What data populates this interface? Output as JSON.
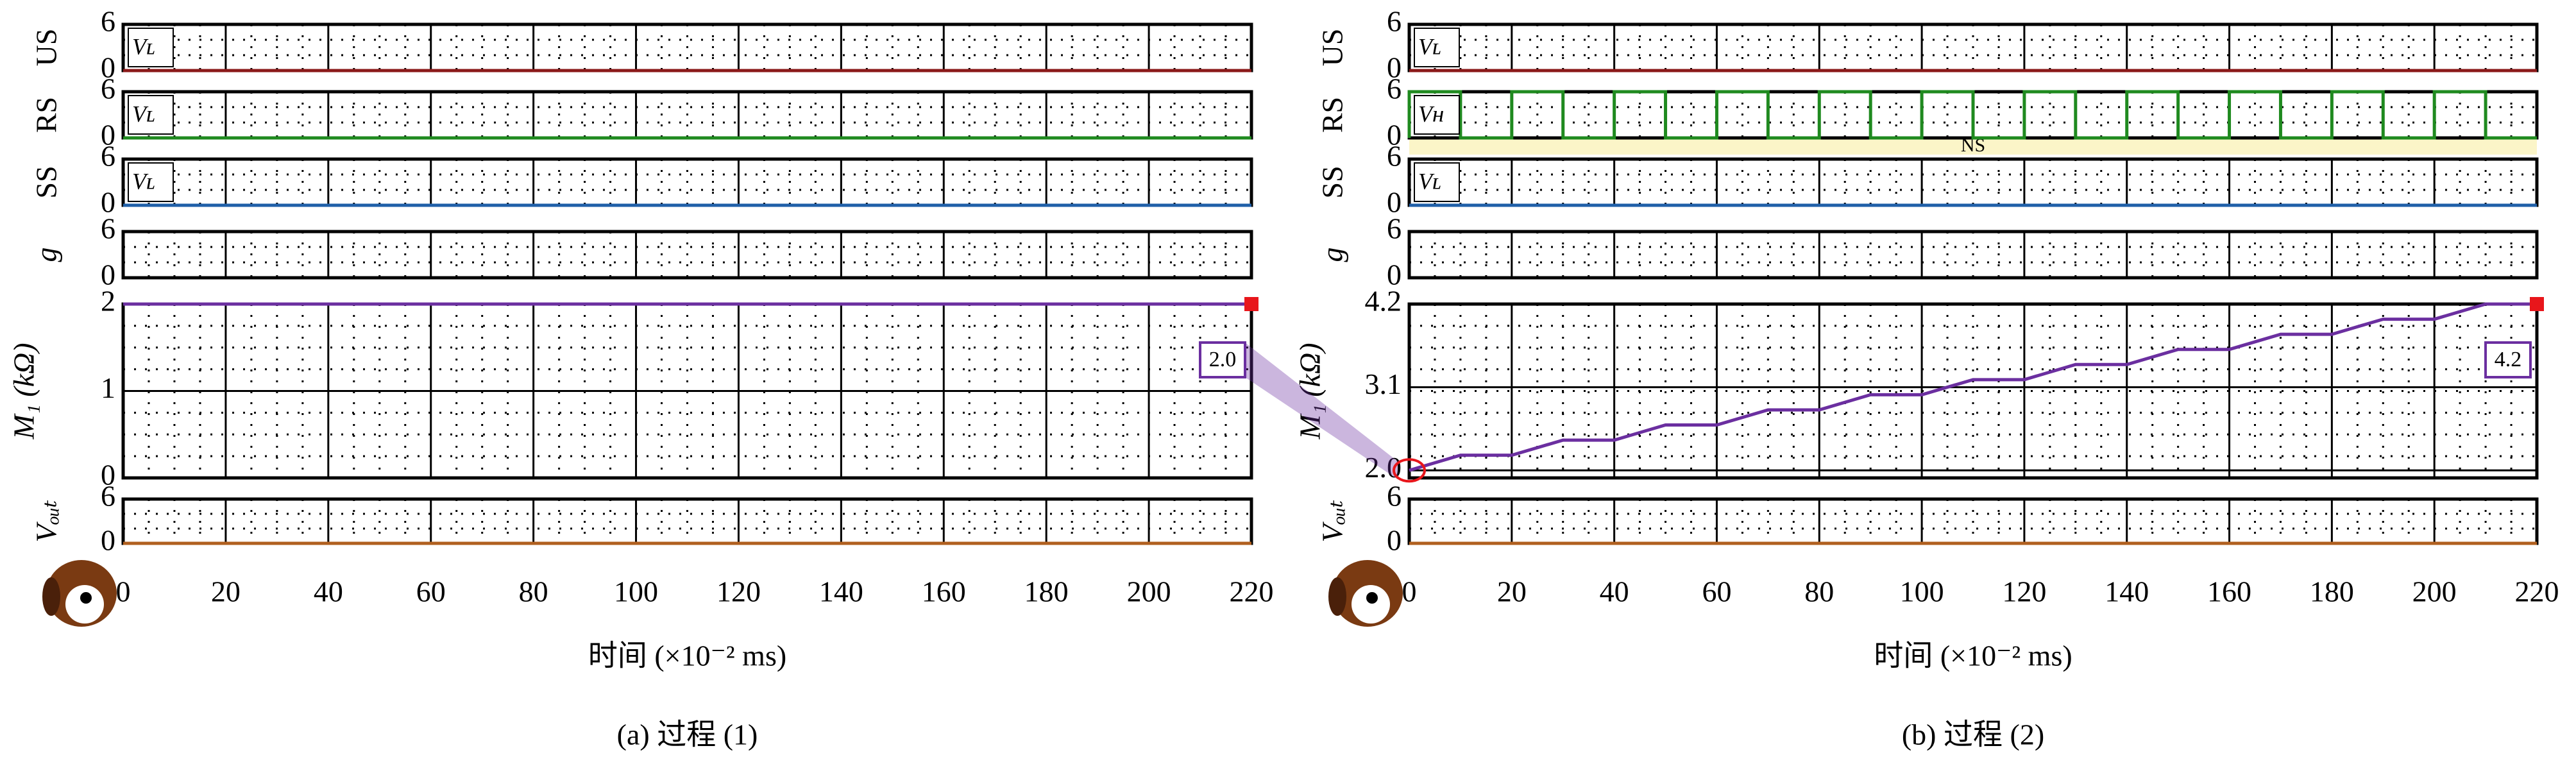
{
  "chart_data": [
    {
      "type": "line",
      "caption": "(a) 过程 (1)",
      "xlabel": "时间 (×10⁻² ms)",
      "xlim": [
        0,
        220
      ],
      "xticks": [
        0,
        20,
        40,
        60,
        80,
        100,
        120,
        140,
        160,
        180,
        200,
        220
      ],
      "grid": true,
      "subplots": [
        {
          "ylabel": "US",
          "ylim": [
            0,
            6
          ],
          "yticks": [
            0,
            6
          ],
          "inner_label": "Vʟ",
          "series": [
            {
              "color": "#8b1a1a",
              "x": [
                0,
                220
              ],
              "values": [
                0,
                0
              ]
            }
          ]
        },
        {
          "ylabel": "RS",
          "ylim": [
            0,
            6
          ],
          "yticks": [
            0,
            6
          ],
          "inner_label": "Vʟ",
          "series": [
            {
              "color": "#1f8a1f",
              "x": [
                0,
                220
              ],
              "values": [
                0,
                0
              ]
            }
          ]
        },
        {
          "ylabel": "SS",
          "ylim": [
            0,
            6
          ],
          "yticks": [
            0,
            6
          ],
          "inner_label": "Vʟ",
          "series": [
            {
              "color": "#1f5fa8",
              "x": [
                0,
                220
              ],
              "values": [
                0,
                0
              ]
            }
          ]
        },
        {
          "ylabel": "g",
          "ylim": [
            0,
            6
          ],
          "yticks": [
            0,
            6
          ],
          "series": []
        },
        {
          "ylabel": "M₁ (kΩ)",
          "ylim": [
            0,
            2
          ],
          "yticks": [
            0,
            1,
            2
          ],
          "annotation": "2.0",
          "series": [
            {
              "color": "#6b2fa0",
              "x": [
                0,
                220
              ],
              "values": [
                2,
                2
              ]
            }
          ]
        },
        {
          "ylabel": "Vₒᵤₜ",
          "ylim": [
            0,
            6
          ],
          "yticks": [
            0,
            6
          ],
          "series": [
            {
              "color": "#b0601f",
              "x": [
                0,
                220
              ],
              "values": [
                0,
                0
              ]
            }
          ]
        }
      ]
    },
    {
      "type": "line",
      "caption": "(b) 过程 (2)",
      "xlabel": "时间 (×10⁻² ms)",
      "xlim": [
        0,
        220
      ],
      "xticks": [
        0,
        20,
        40,
        60,
        80,
        100,
        120,
        140,
        160,
        180,
        200,
        220
      ],
      "grid": true,
      "subplots": [
        {
          "ylabel": "US",
          "ylim": [
            0,
            6
          ],
          "yticks": [
            0,
            6
          ],
          "inner_label": "Vʟ",
          "series": [
            {
              "color": "#8b1a1a",
              "x": [
                0,
                220
              ],
              "values": [
                0,
                0
              ]
            }
          ]
        },
        {
          "ylabel": "RS",
          "ylim": [
            0,
            6
          ],
          "yticks": [
            0,
            6
          ],
          "inner_label": "Vʜ",
          "band_label": "NS",
          "series": [
            {
              "color": "#1f8a1f",
              "x": [
                0,
                0,
                10,
                10,
                20,
                20,
                30,
                30,
                40,
                40,
                50,
                50,
                60,
                60,
                70,
                70,
                80,
                80,
                90,
                90,
                100,
                100,
                110,
                110,
                120,
                120,
                130,
                130,
                140,
                140,
                150,
                150,
                160,
                160,
                170,
                170,
                180,
                180,
                190,
                190,
                200,
                200,
                210,
                210,
                220
              ],
              "values": [
                0,
                6,
                6,
                0,
                0,
                6,
                6,
                0,
                0,
                6,
                6,
                0,
                0,
                6,
                6,
                0,
                0,
                6,
                6,
                0,
                0,
                6,
                6,
                0,
                0,
                6,
                6,
                0,
                0,
                6,
                6,
                0,
                0,
                6,
                6,
                0,
                0,
                6,
                6,
                0,
                0,
                6,
                6,
                0,
                0
              ]
            }
          ]
        },
        {
          "ylabel": "SS",
          "ylim": [
            0,
            6
          ],
          "yticks": [
            0,
            6
          ],
          "inner_label": "Vʟ",
          "series": [
            {
              "color": "#1f5fa8",
              "x": [
                0,
                220
              ],
              "values": [
                0,
                0
              ]
            }
          ]
        },
        {
          "ylabel": "g",
          "ylim": [
            0,
            6
          ],
          "yticks": [
            0,
            6
          ],
          "series": []
        },
        {
          "ylabel": "M₁ (kΩ)",
          "ylim": [
            1.9,
            4.2
          ],
          "yticks": [
            {
              "value": 2.0,
              "label": "2.0"
            },
            {
              "value": 3.1,
              "label": "3.1"
            },
            {
              "value": 4.2,
              "label": "4.2"
            }
          ],
          "annotation": "4.2",
          "series": [
            {
              "color": "#6b2fa0",
              "x": [
                0,
                10,
                20,
                30,
                40,
                50,
                60,
                70,
                80,
                90,
                100,
                110,
                120,
                130,
                140,
                150,
                160,
                170,
                180,
                190,
                200,
                210,
                220
              ],
              "values": [
                2.0,
                2.2,
                2.2,
                2.4,
                2.4,
                2.6,
                2.6,
                2.8,
                2.8,
                3.0,
                3.0,
                3.2,
                3.2,
                3.4,
                3.4,
                3.6,
                3.6,
                3.8,
                3.8,
                4.0,
                4.0,
                4.2,
                4.2
              ]
            }
          ]
        },
        {
          "ylabel": "Vₒᵤₜ",
          "ylim": [
            0,
            6
          ],
          "yticks": [
            0,
            6
          ],
          "series": [
            {
              "color": "#b0601f",
              "x": [
                0,
                220
              ],
              "values": [
                0,
                0
              ]
            }
          ]
        }
      ]
    }
  ]
}
